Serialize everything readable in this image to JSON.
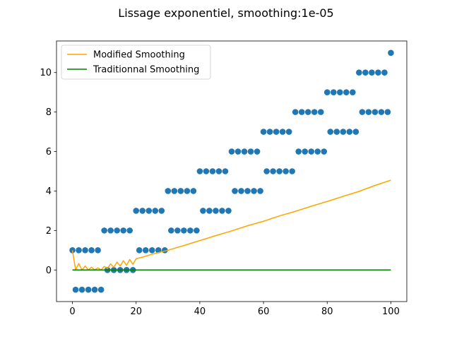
{
  "chart_data": {
    "type": "scatter",
    "title": "Lissage exponentiel, smoothing:1e-05",
    "xlabel": "",
    "ylabel": "",
    "xlim": [
      -5,
      105
    ],
    "ylim": [
      -1.6,
      11.6
    ],
    "xticks": [
      0,
      20,
      40,
      60,
      80,
      100
    ],
    "yticks": [
      0,
      2,
      4,
      6,
      8,
      10
    ],
    "xtick_labels": [
      "0",
      "20",
      "40",
      "60",
      "80",
      "100"
    ],
    "ytick_labels": [
      "0",
      "2",
      "4",
      "6",
      "8",
      "10"
    ],
    "grid": false,
    "legend_position": "top-left",
    "scatter": {
      "color": "#1f77b4",
      "x": [
        0,
        1,
        2,
        3,
        4,
        5,
        6,
        7,
        8,
        9,
        10,
        11,
        12,
        13,
        14,
        15,
        16,
        17,
        18,
        19,
        20,
        21,
        22,
        23,
        24,
        25,
        26,
        27,
        28,
        29,
        30,
        31,
        32,
        33,
        34,
        35,
        36,
        37,
        38,
        39,
        40,
        41,
        42,
        43,
        44,
        45,
        46,
        47,
        48,
        49,
        50,
        51,
        52,
        53,
        54,
        55,
        56,
        57,
        58,
        59,
        60,
        61,
        62,
        63,
        64,
        65,
        66,
        67,
        68,
        69,
        70,
        71,
        72,
        73,
        74,
        75,
        76,
        77,
        78,
        79,
        80,
        81,
        82,
        83,
        84,
        85,
        86,
        87,
        88,
        89,
        90,
        91,
        92,
        93,
        94,
        95,
        96,
        97,
        98,
        99,
        100
      ],
      "y": [
        1,
        -1,
        1,
        -1,
        1,
        -1,
        1,
        -1,
        1,
        -1,
        2,
        0,
        2,
        0,
        2,
        0,
        2,
        0,
        2,
        0,
        3,
        1,
        3,
        1,
        3,
        1,
        3,
        1,
        3,
        1,
        4,
        2,
        4,
        2,
        4,
        2,
        4,
        2,
        4,
        2,
        5,
        3,
        5,
        3,
        5,
        3,
        5,
        3,
        5,
        3,
        6,
        4,
        6,
        4,
        6,
        4,
        6,
        4,
        6,
        4,
        7,
        5,
        7,
        5,
        7,
        5,
        7,
        5,
        7,
        5,
        8,
        6,
        8,
        6,
        8,
        6,
        8,
        6,
        8,
        6,
        9,
        7,
        9,
        7,
        9,
        7,
        9,
        7,
        9,
        7,
        10,
        8,
        10,
        8,
        10,
        8,
        10,
        8,
        10,
        8,
        11
      ]
    },
    "series": [
      {
        "name": "Modified Smoothing",
        "color": "#ffa500",
        "x": [
          0,
          1,
          2,
          3,
          4,
          5,
          6,
          7,
          8,
          9,
          10,
          11,
          12,
          13,
          14,
          15,
          16,
          17,
          18,
          19,
          20,
          22,
          24,
          26,
          28,
          30,
          35,
          40,
          45,
          50,
          55,
          60,
          65,
          70,
          75,
          80,
          85,
          90,
          95,
          100
        ],
        "y": [
          1.0,
          0.0,
          0.33,
          0.0,
          0.2,
          0.0,
          0.14,
          0.0,
          0.11,
          0.0,
          0.18,
          0.08,
          0.31,
          0.14,
          0.4,
          0.2,
          0.47,
          0.24,
          0.53,
          0.29,
          0.57,
          0.65,
          0.75,
          0.84,
          0.92,
          1.0,
          1.24,
          1.49,
          1.74,
          1.98,
          2.24,
          2.47,
          2.74,
          2.97,
          3.23,
          3.47,
          3.73,
          3.98,
          4.28,
          4.55
        ]
      },
      {
        "name": "Traditionnal Smoothing",
        "color": "#008000",
        "x": [
          0,
          100
        ],
        "y": [
          0.0,
          0.0
        ]
      }
    ]
  }
}
